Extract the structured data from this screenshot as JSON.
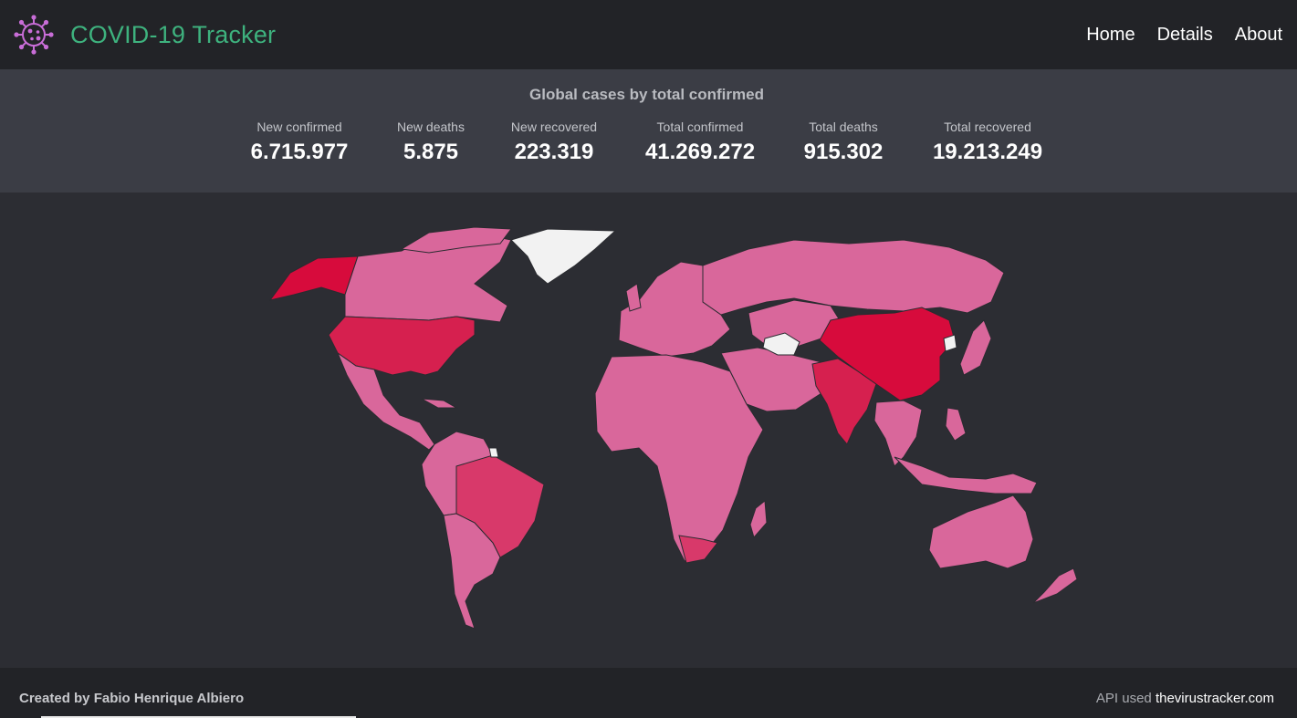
{
  "header": {
    "title": "COVID-19 Tracker",
    "logo_icon": "virus-icon",
    "nav": [
      {
        "label": "Home"
      },
      {
        "label": "Details"
      },
      {
        "label": "About"
      }
    ]
  },
  "stats": {
    "heading": "Global cases by total confirmed",
    "items": [
      {
        "label": "New confirmed",
        "value": "6.715.977"
      },
      {
        "label": "New deaths",
        "value": "5.875"
      },
      {
        "label": "New recovered",
        "value": "223.319"
      },
      {
        "label": "Total confirmed",
        "value": "41.269.272"
      },
      {
        "label": "Total deaths",
        "value": "915.302"
      },
      {
        "label": "Total recovered",
        "value": "19.213.249"
      }
    ]
  },
  "map": {
    "colors": {
      "low": "#d9679b",
      "medium": "#d8396a",
      "high": "#d6204f",
      "highest": "#d70b3c",
      "no_data": "#f2f2f2"
    }
  },
  "footer": {
    "credit": "Created by Fabio Henrique Albiero",
    "api_label": "API used",
    "api_link": "thevirustracker.com"
  },
  "colors": {
    "brand": "#3eb27e",
    "navbar_bg": "#222327",
    "stats_bg": "#3b3d45",
    "page_bg": "#2c2d33"
  }
}
